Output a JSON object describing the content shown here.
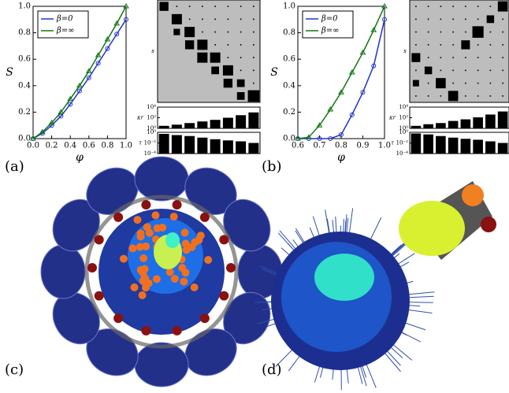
{
  "panel_labels": [
    "(a)",
    "(b)",
    "(c)",
    "(d)"
  ],
  "chart_data": [
    {
      "type": "line",
      "xlabel": "φ",
      "ylabel": "S",
      "x": [
        0,
        0.1,
        0.2,
        0.3,
        0.4,
        0.5,
        0.6,
        0.7,
        0.8,
        0.9,
        1
      ],
      "series": [
        {
          "name": "β=0",
          "color": "#2233cc",
          "marker": "circle",
          "values": [
            0,
            0.04,
            0.1,
            0.17,
            0.26,
            0.36,
            0.46,
            0.57,
            0.68,
            0.79,
            0.9
          ]
        },
        {
          "name": "β=∞",
          "color": "#117711",
          "marker": "triangle",
          "values": [
            0,
            0.05,
            0.12,
            0.2,
            0.3,
            0.4,
            0.51,
            0.63,
            0.75,
            0.87,
            1
          ]
        }
      ],
      "xlim": [
        0,
        1
      ],
      "ylim": [
        0,
        1
      ],
      "xticks": [
        {
          "value": 0,
          "label": "0.0"
        },
        0.2,
        0.4,
        0.6,
        0.8,
        {
          "value": 1,
          "label": "1.0"
        }
      ],
      "yticks": [
        {
          "value": 0,
          "label": "0.0"
        },
        0.2,
        0.4,
        0.6,
        0.8,
        {
          "value": 1,
          "label": "1.0"
        }
      ],
      "legend": "upper left"
    },
    {
      "type": "matrix",
      "ylabel": "s",
      "values": [
        [
          0.7,
          0.1,
          0.1,
          0.1,
          0.1,
          0.1,
          0.1,
          0.1
        ],
        [
          0,
          0.8,
          0.1,
          0.1,
          0.1,
          0.1,
          0.1,
          0.1
        ],
        [
          0,
          0.5,
          0.8,
          0.1,
          0.1,
          0.1,
          0.1,
          0.1
        ],
        [
          0,
          0,
          0.7,
          0.8,
          0.1,
          0.1,
          0.1,
          0.1
        ],
        [
          0,
          0,
          0,
          0.8,
          0.8,
          0.1,
          0.1,
          0.1
        ],
        [
          0,
          0,
          0,
          0,
          0.6,
          0.8,
          0.1,
          0.1
        ],
        [
          0,
          0,
          0,
          0,
          0,
          0.7,
          0.6,
          0.1
        ],
        [
          0,
          0,
          0,
          0,
          0,
          0,
          0.6,
          0.9
        ]
      ]
    },
    {
      "type": "bar",
      "ylabel": "κr",
      "log": true,
      "values": [
        3,
        5,
        10,
        20,
        40,
        100,
        300,
        1000
      ],
      "ylim": [
        1,
        10000
      ],
      "yticks": [
        {
          "value": 1,
          "label": "10⁰"
        },
        {
          "value": 100,
          "label": "10²"
        },
        {
          "value": 10000,
          "label": "10⁴"
        }
      ]
    },
    {
      "type": "bar",
      "ylabel": "τ",
      "log": true,
      "values": [
        0.5,
        0.3,
        0.2,
        0.1,
        0.05,
        0.03,
        0.02,
        0.01
      ],
      "ylim": [
        0.0001,
        1
      ],
      "yticks": [
        {
          "value": 1,
          "label": "10⁰"
        },
        {
          "value": 0.01,
          "label": "10⁻²"
        },
        {
          "value": 0.0001,
          "label": "10⁻⁴"
        }
      ]
    },
    {
      "type": "line",
      "xlabel": "φ",
      "ylabel": "S",
      "x": [
        0.6,
        0.65,
        0.7,
        0.75,
        0.8,
        0.85,
        0.9,
        0.95,
        1
      ],
      "series": [
        {
          "name": "β=0",
          "color": "#2233cc",
          "marker": "circle",
          "values": [
            0,
            0,
            0,
            0,
            0.03,
            0.18,
            0.35,
            0.55,
            0.9
          ]
        },
        {
          "name": "β=∞",
          "color": "#117711",
          "marker": "triangle",
          "values": [
            0,
            0.01,
            0.1,
            0.22,
            0.35,
            0.5,
            0.65,
            0.82,
            1
          ]
        }
      ],
      "xlim": [
        0.6,
        1
      ],
      "ylim": [
        0,
        1
      ],
      "xticks": [
        0.6,
        0.7,
        0.8,
        0.9,
        {
          "value": 1,
          "label": "1.0"
        }
      ],
      "yticks": [
        {
          "value": 0,
          "label": "0.0"
        },
        0.2,
        0.4,
        0.6,
        0.8,
        {
          "value": 1,
          "label": "1.0"
        }
      ],
      "legend": "upper left"
    },
    {
      "type": "matrix",
      "ylabel": "s",
      "values": [
        [
          0.1,
          0.1,
          0.1,
          0.1,
          0.1,
          0.1,
          0.1,
          0.8
        ],
        [
          0.1,
          0.1,
          0.1,
          0.1,
          0.1,
          0.1,
          0.6,
          0.1
        ],
        [
          0.1,
          0.1,
          0.1,
          0.1,
          0.1,
          0.9,
          0.1,
          0.1
        ],
        [
          0.1,
          0.1,
          0.1,
          0.1,
          0.7,
          0.1,
          0.1,
          0.1
        ],
        [
          0.7,
          0.1,
          0.1,
          0.1,
          0.1,
          0.1,
          0.1,
          0.1
        ],
        [
          0.1,
          0.6,
          0.1,
          0.1,
          0.1,
          0.1,
          0.1,
          0.1
        ],
        [
          0.5,
          0.1,
          0.8,
          0.1,
          0.1,
          0.1,
          0.1,
          0.1
        ],
        [
          0.1,
          0.1,
          0.1,
          0.8,
          0.1,
          0.1,
          0.1,
          0.1
        ]
      ]
    },
    {
      "type": "bar",
      "ylabel": "κr",
      "log": true,
      "values": [
        3,
        6,
        10,
        25,
        50,
        120,
        400,
        1500
      ],
      "ylim": [
        1,
        10000
      ],
      "yticks": [
        {
          "value": 1,
          "label": "10⁰"
        },
        {
          "value": 100,
          "label": "10²"
        },
        {
          "value": 10000,
          "label": "10⁴"
        }
      ]
    },
    {
      "type": "bar",
      "ylabel": "τ",
      "log": true,
      "values": [
        0.6,
        0.4,
        0.2,
        0.1,
        0.06,
        0.04,
        0.02,
        0.01
      ],
      "ylim": [
        0.0001,
        1
      ],
      "yticks": [
        {
          "value": 1,
          "label": "10⁰"
        },
        {
          "value": 0.01,
          "label": "10⁻²"
        },
        {
          "value": 0.0001,
          "label": "10⁻⁴"
        }
      ]
    }
  ]
}
